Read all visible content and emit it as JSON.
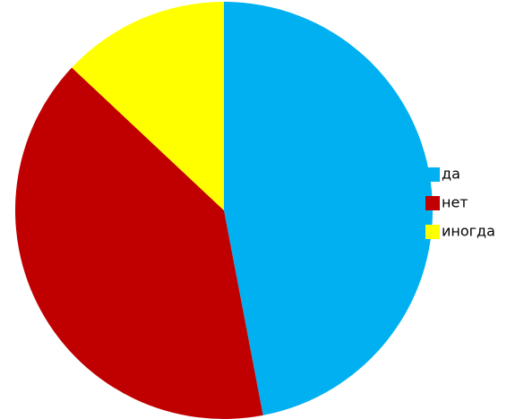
{
  "chart_data": {
    "type": "pie",
    "categories": [
      "да",
      "нет",
      "иногда"
    ],
    "values": [
      47,
      40,
      13
    ],
    "colors": [
      "#00b0f0",
      "#c00000",
      "#ffff00"
    ],
    "legend": "right"
  }
}
